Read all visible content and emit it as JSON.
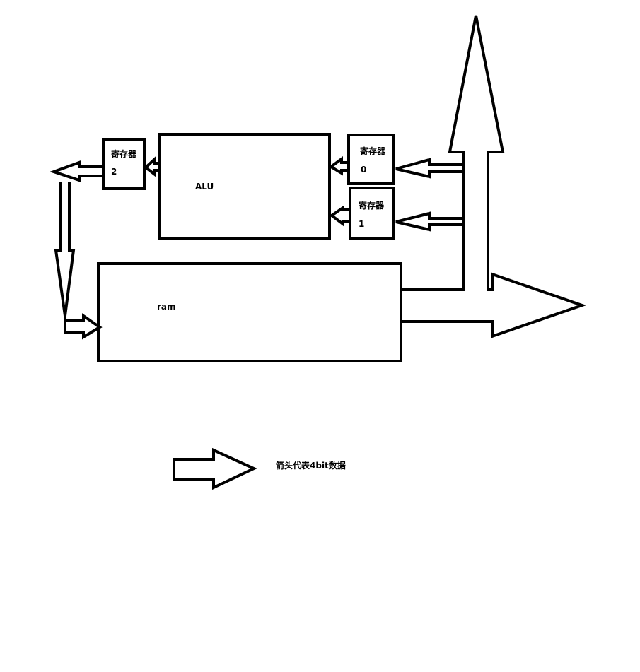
{
  "diagram": {
    "register0": {
      "title": "寄存器",
      "index": "0"
    },
    "register1": {
      "title": "寄存器",
      "index": "1"
    },
    "register2": {
      "title": "寄存器",
      "index": "2"
    },
    "alu": {
      "label": "ALU"
    },
    "ram": {
      "label": "ram"
    },
    "legend": {
      "text": "箭头代表4bit数据"
    }
  },
  "colors": {
    "stroke": "#000000",
    "background": "#ffffff"
  }
}
